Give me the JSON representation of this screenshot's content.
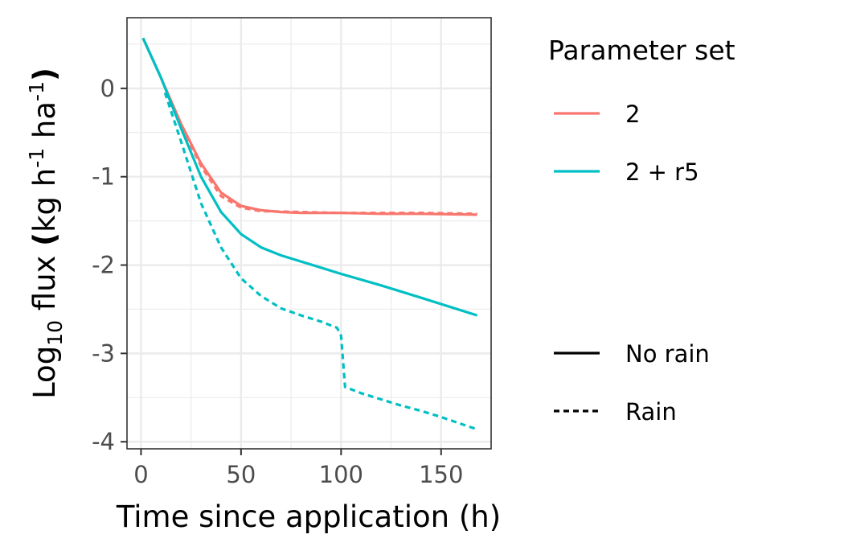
{
  "chart_data": {
    "type": "line",
    "xlabel": "Time since application (h)",
    "ylabel": {
      "prefix": "Log",
      "prefix_sub": "10",
      "mid1": " flux ",
      "paren_open": "(",
      "unit1": "kg h",
      "sup1": "-1",
      "unit2": " ha",
      "sup2": "-1",
      "paren_close": ")"
    },
    "xlim": [
      -7,
      175
    ],
    "ylim": [
      -4.08,
      0.8
    ],
    "x_ticks": [
      0,
      50,
      100,
      150
    ],
    "x_tick_labels": [
      "0",
      "50",
      "100",
      "150"
    ],
    "y_ticks": [
      0,
      -1,
      -2,
      -3,
      -4
    ],
    "y_tick_labels": [
      "0",
      "-1",
      "-2",
      "-3",
      "-4"
    ],
    "grid": true,
    "legend_placement": "right",
    "legend_color_title": "Parameter set",
    "legend_colors": [
      {
        "label": "2",
        "color": "#F8766D"
      },
      {
        "label": "2 + r5",
        "color": "#00BFC4"
      }
    ],
    "legend_linetypes": [
      {
        "label": "No rain",
        "dash": "solid"
      },
      {
        "label": "Rain",
        "dash": "dotted"
      }
    ],
    "series": [
      {
        "parameter_set": "2",
        "rain": "No rain",
        "color": "#F8766D",
        "dash": "solid",
        "points": [
          [
            1,
            0.57
          ],
          [
            10,
            0.12
          ],
          [
            20,
            -0.4
          ],
          [
            30,
            -0.85
          ],
          [
            40,
            -1.18
          ],
          [
            50,
            -1.33
          ],
          [
            60,
            -1.38
          ],
          [
            70,
            -1.4
          ],
          [
            80,
            -1.41
          ],
          [
            100,
            -1.41
          ],
          [
            120,
            -1.42
          ],
          [
            140,
            -1.42
          ],
          [
            168,
            -1.43
          ]
        ]
      },
      {
        "parameter_set": "2",
        "rain": "Rain",
        "color": "#F8766D",
        "dash": "dotted",
        "points": [
          [
            12,
            -0.05
          ],
          [
            20,
            -0.42
          ],
          [
            30,
            -0.88
          ],
          [
            40,
            -1.22
          ],
          [
            50,
            -1.35
          ],
          [
            60,
            -1.39
          ],
          [
            80,
            -1.4
          ],
          [
            100,
            -1.41
          ],
          [
            120,
            -1.41
          ],
          [
            140,
            -1.41
          ],
          [
            168,
            -1.42
          ]
        ]
      },
      {
        "parameter_set": "2 + r5",
        "rain": "No rain",
        "color": "#00BFC4",
        "dash": "solid",
        "points": [
          [
            1,
            0.57
          ],
          [
            10,
            0.12
          ],
          [
            20,
            -0.45
          ],
          [
            30,
            -1.0
          ],
          [
            40,
            -1.4
          ],
          [
            50,
            -1.65
          ],
          [
            60,
            -1.8
          ],
          [
            70,
            -1.89
          ],
          [
            80,
            -1.96
          ],
          [
            100,
            -2.1
          ],
          [
            120,
            -2.23
          ],
          [
            140,
            -2.37
          ],
          [
            168,
            -2.57
          ]
        ]
      },
      {
        "parameter_set": "2 + r5",
        "rain": "Rain",
        "color": "#00BFC4",
        "dash": "dotted",
        "points": [
          [
            12,
            -0.05
          ],
          [
            20,
            -0.6
          ],
          [
            30,
            -1.3
          ],
          [
            40,
            -1.8
          ],
          [
            50,
            -2.15
          ],
          [
            60,
            -2.35
          ],
          [
            70,
            -2.49
          ],
          [
            80,
            -2.57
          ],
          [
            90,
            -2.64
          ],
          [
            98,
            -2.71
          ],
          [
            100,
            -2.8
          ],
          [
            102,
            -3.38
          ],
          [
            110,
            -3.45
          ],
          [
            120,
            -3.52
          ],
          [
            130,
            -3.59
          ],
          [
            140,
            -3.65
          ],
          [
            150,
            -3.72
          ],
          [
            168,
            -3.86
          ]
        ]
      }
    ]
  }
}
